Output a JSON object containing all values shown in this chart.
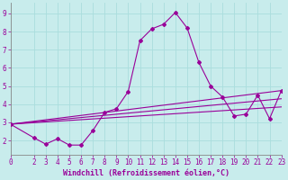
{
  "title": "",
  "xlabel": "Windchill (Refroidissement éolien,°C)",
  "ylabel": "",
  "bg_color": "#c8ecec",
  "line_color": "#990099",
  "grid_color": "#aadddd",
  "xlim": [
    0,
    23
  ],
  "ylim": [
    1.2,
    9.6
  ],
  "xticks": [
    0,
    2,
    3,
    4,
    5,
    6,
    7,
    8,
    9,
    10,
    11,
    12,
    13,
    14,
    15,
    16,
    17,
    18,
    19,
    20,
    21,
    22,
    23
  ],
  "yticks": [
    2,
    3,
    4,
    5,
    6,
    7,
    8,
    9
  ],
  "series": [
    {
      "x": [
        0,
        2,
        3,
        4,
        5,
        6,
        7,
        8,
        9,
        10,
        11,
        12,
        13,
        14,
        15,
        16,
        17,
        18,
        19,
        20,
        21,
        22,
        23
      ],
      "y": [
        2.9,
        2.15,
        1.8,
        2.1,
        1.75,
        1.75,
        2.55,
        3.55,
        3.75,
        4.7,
        7.5,
        8.15,
        8.4,
        9.05,
        8.2,
        6.3,
        5.0,
        4.4,
        3.35,
        3.45,
        4.5,
        3.2,
        4.75
      ]
    },
    {
      "x": [
        0,
        23
      ],
      "y": [
        2.9,
        4.75
      ]
    },
    {
      "x": [
        0,
        23
      ],
      "y": [
        2.9,
        4.3
      ]
    },
    {
      "x": [
        0,
        23
      ],
      "y": [
        2.9,
        3.85
      ]
    }
  ],
  "marker": "D",
  "marker_size": 2,
  "linewidth": 0.8,
  "xlabel_color": "#990099",
  "xlabel_fontsize": 6,
  "tick_fontsize": 5.5,
  "tick_color": "#990099",
  "axis_color": "#990099",
  "spine_color": "#888888"
}
